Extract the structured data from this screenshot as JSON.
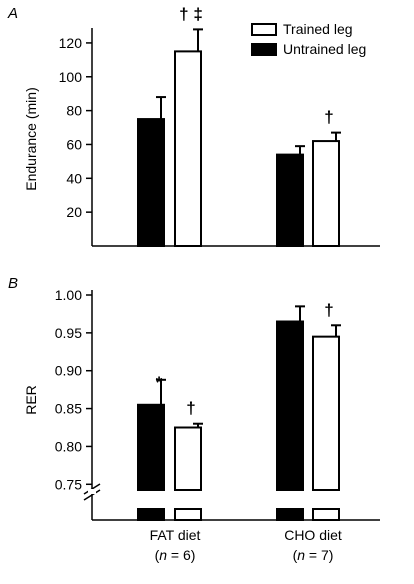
{
  "colors": {
    "untrained": "#000000",
    "trained": "#ffffff",
    "outline": "#000000"
  },
  "chart_data": [
    {
      "panel": "A",
      "type": "bar",
      "ylabel": "Endurance (min)",
      "ylim": [
        0,
        130
      ],
      "yticks": [
        20,
        40,
        60,
        80,
        100,
        120
      ],
      "grid": false,
      "legend_position": "top-right",
      "series": [
        {
          "name": "Untrained leg",
          "values": [
            75,
            54
          ],
          "errors": [
            13,
            5
          ]
        },
        {
          "name": "Trained leg",
          "values": [
            115,
            62
          ],
          "errors": [
            13,
            5
          ]
        }
      ],
      "annotations": [
        {
          "text": "† ‡",
          "series": 1,
          "category": 0
        },
        {
          "text": "†",
          "series": 1,
          "category": 1
        }
      ]
    },
    {
      "panel": "B",
      "type": "bar",
      "ylabel": "RER",
      "ylim": [
        0.72,
        1.0
      ],
      "yticks": [
        0.75,
        0.8,
        0.85,
        0.9,
        0.95,
        1.0
      ],
      "ytick_labels": [
        "0.75",
        "0.80",
        "0.85",
        "0.90",
        "0.95",
        "1.00"
      ],
      "axis_break": true,
      "grid": false,
      "categories": [
        "FAT diet",
        "CHO diet"
      ],
      "category_n": [
        "(n = 6)",
        "(n = 7)"
      ],
      "series": [
        {
          "name": "Untrained leg",
          "values": [
            0.855,
            0.965
          ],
          "errors": [
            0.033,
            0.02
          ]
        },
        {
          "name": "Trained leg",
          "values": [
            0.825,
            0.945
          ],
          "errors": [
            0.005,
            0.015
          ]
        }
      ],
      "annotations": [
        {
          "text": "*",
          "series": 0,
          "category": 0
        },
        {
          "text": "†",
          "series": 1,
          "category": 0
        },
        {
          "text": "†",
          "series": 1,
          "category": 1
        }
      ]
    }
  ],
  "labels": {
    "panel_a": "A",
    "panel_b": "B",
    "legend_trained": "Trained leg",
    "legend_untrained": "Untrained leg",
    "cat_fat": "FAT diet",
    "cat_cho": "CHO diet",
    "n_fat_prefix": "(",
    "n_fat_italic": "n",
    "n_fat_suffix": " = 6)",
    "n_cho_prefix": "(",
    "n_cho_italic": "n",
    "n_cho_suffix": " = 7)"
  }
}
